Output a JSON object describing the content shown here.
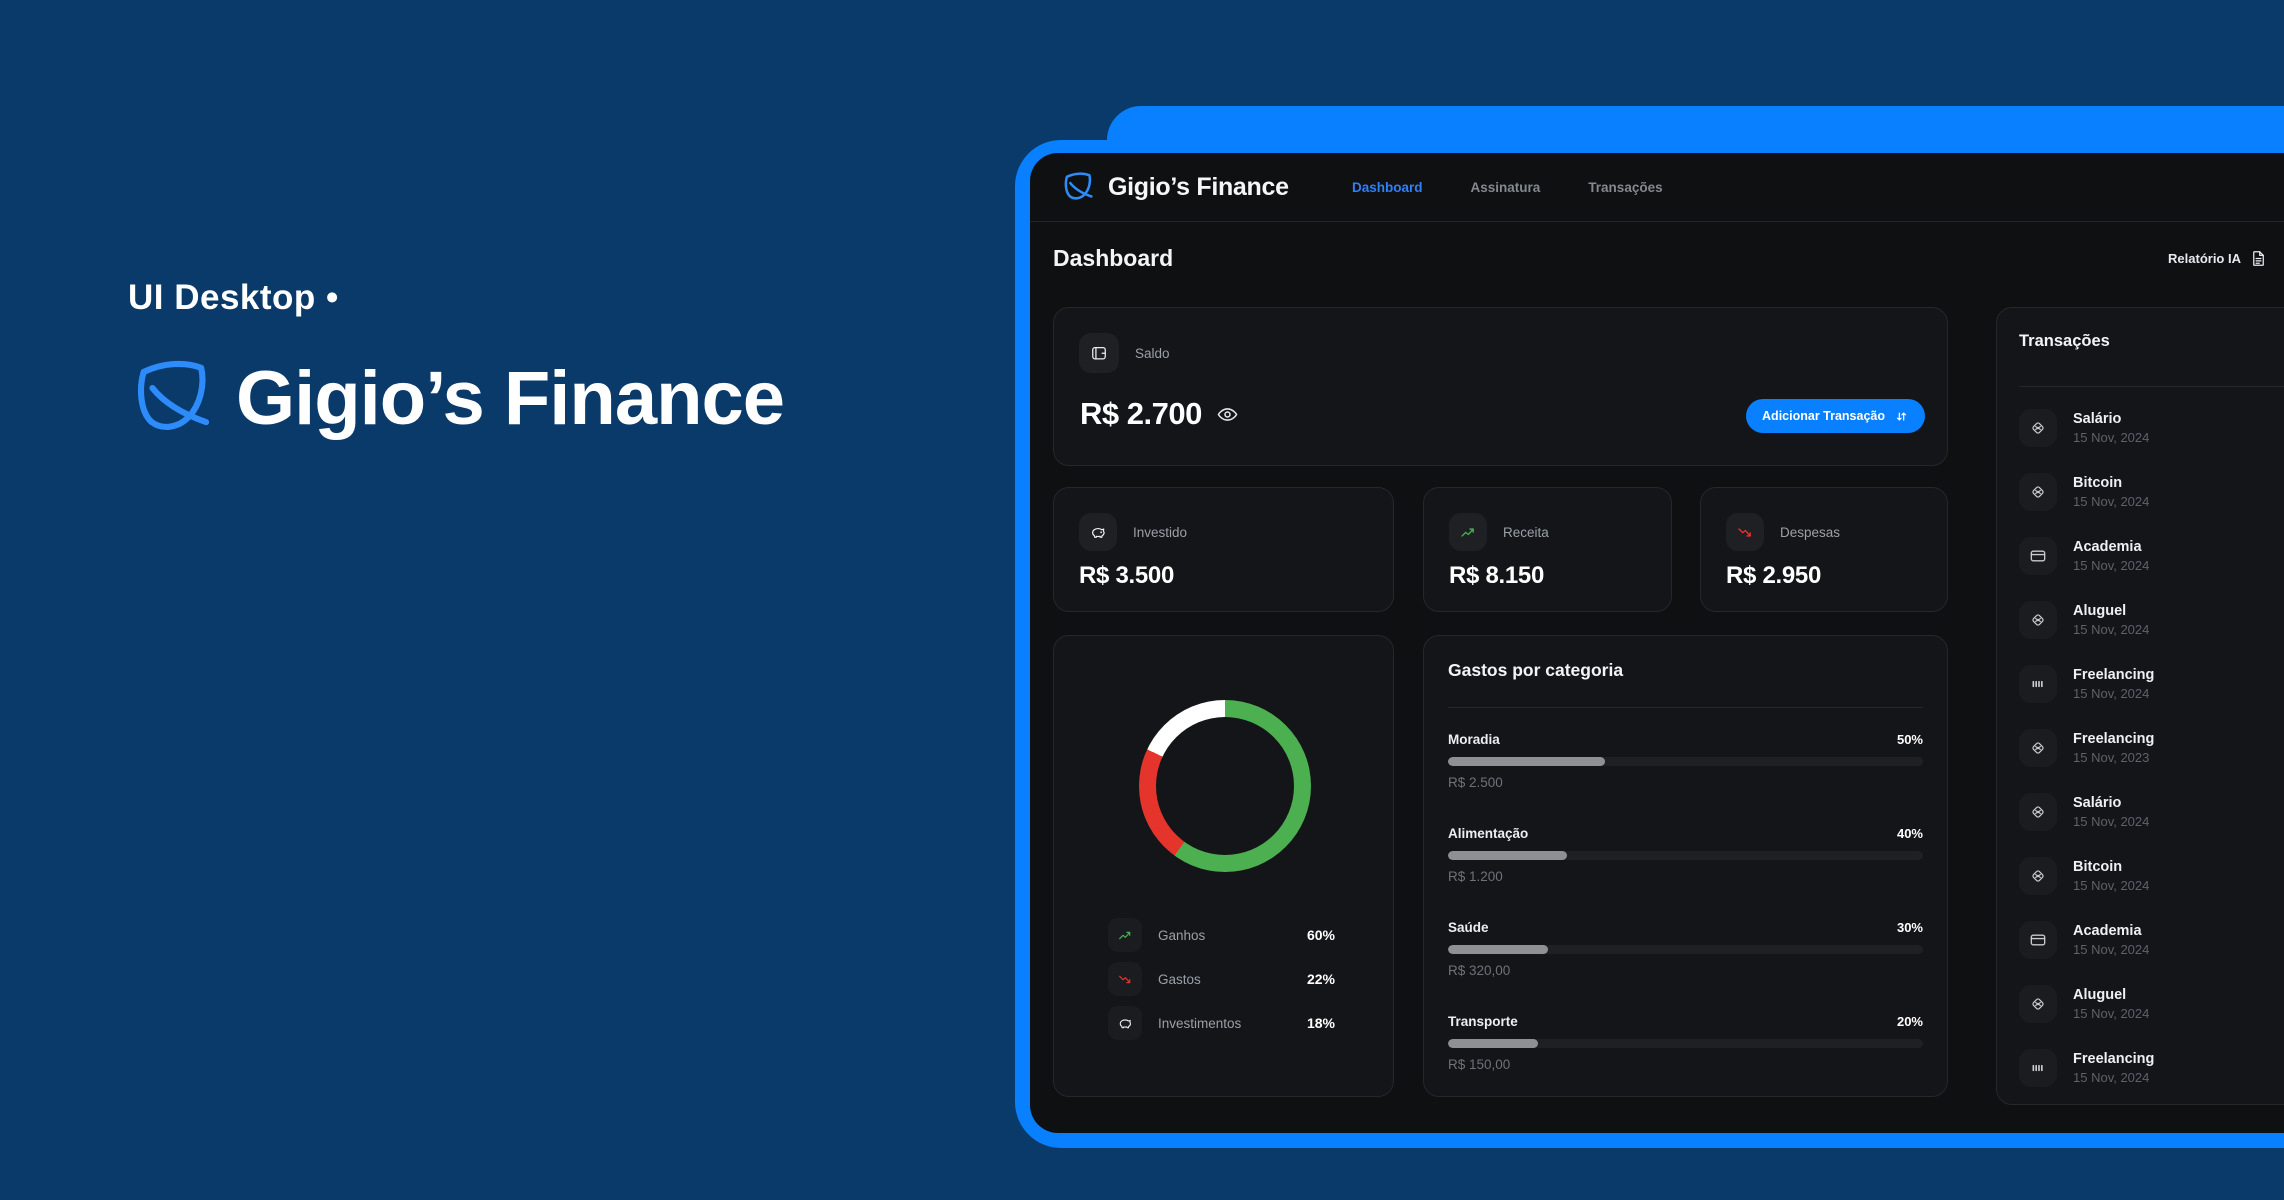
{
  "hero": {
    "tagline": "UI Desktop •",
    "title": "Gigio’s Finance"
  },
  "header": {
    "brand": "Gigio’s Finance",
    "nav": [
      {
        "label": "Dashboard",
        "active": true
      },
      {
        "label": "Assinatura",
        "active": false
      },
      {
        "label": "Transações",
        "active": false
      }
    ]
  },
  "page": {
    "title": "Dashboard",
    "report_label": "Relatório IA"
  },
  "balance": {
    "label": "Saldo",
    "value": "R$ 2.700",
    "add_button_label": "Adicionar Transação"
  },
  "stats": [
    {
      "label": "Investido",
      "value": "R$ 3.500",
      "icon": "piggy-bank"
    },
    {
      "label": "Receita",
      "value": "R$ 8.150",
      "icon": "trend-up"
    },
    {
      "label": "Despesas",
      "value": "R$ 2.950",
      "icon": "trend-down"
    }
  ],
  "chart_data": {
    "type": "pie",
    "title": "",
    "categories": [
      "Ganhos",
      "Gastos",
      "Investimentos"
    ],
    "values": [
      60,
      22,
      18
    ],
    "colors": [
      "#4caf50",
      "#e5342c",
      "#ffffff"
    ],
    "donut": true,
    "legend_position": "bottom"
  },
  "legend": [
    {
      "label": "Ganhos",
      "value": "60%",
      "icon": "trend-up"
    },
    {
      "label": "Gastos",
      "value": "22%",
      "icon": "trend-down"
    },
    {
      "label": "Investimentos",
      "value": "18%",
      "icon": "piggy-bank"
    }
  ],
  "categories": {
    "title": "Gastos por categoria",
    "rows": [
      {
        "label": "Moradia",
        "percent": "50%",
        "amount": "R$ 2.500",
        "fill": 33
      },
      {
        "label": "Alimentação",
        "percent": "40%",
        "amount": "R$ 1.200",
        "fill": 25
      },
      {
        "label": "Saúde",
        "percent": "30%",
        "amount": "R$ 320,00",
        "fill": 21
      },
      {
        "label": "Transporte",
        "percent": "20%",
        "amount": "R$ 150,00",
        "fill": 19
      }
    ]
  },
  "transactions": {
    "title": "Transações",
    "items": [
      {
        "name": "Salário",
        "date": "15 Nov, 2024",
        "icon": "pix"
      },
      {
        "name": "Bitcoin",
        "date": "15 Nov, 2024",
        "icon": "pix"
      },
      {
        "name": "Academia",
        "date": "15 Nov, 2024",
        "icon": "credit-card"
      },
      {
        "name": "Aluguel",
        "date": "15 Nov, 2024",
        "icon": "pix"
      },
      {
        "name": "Freelancing",
        "date": "15 Nov, 2024",
        "icon": "barcode"
      },
      {
        "name": "Freelancing",
        "date": "15 Nov, 2023",
        "icon": "pix"
      },
      {
        "name": "Salário",
        "date": "15 Nov, 2024",
        "icon": "pix"
      },
      {
        "name": "Bitcoin",
        "date": "15 Nov, 2024",
        "icon": "pix"
      },
      {
        "name": "Academia",
        "date": "15 Nov, 2024",
        "icon": "credit-card"
      },
      {
        "name": "Aluguel",
        "date": "15 Nov, 2024",
        "icon": "pix"
      },
      {
        "name": "Freelancing",
        "date": "15 Nov, 2024",
        "icon": "barcode"
      }
    ]
  },
  "colors": {
    "accent": "#0880ff",
    "green": "#4caf50",
    "red": "#e5342c",
    "navy": "#0a3a69"
  }
}
